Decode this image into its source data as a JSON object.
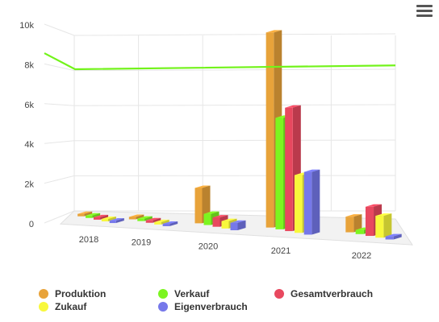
{
  "chart_data": {
    "type": "bar",
    "categories": [
      "2018",
      "2019",
      "2020",
      "2021",
      "2022"
    ],
    "series": [
      {
        "name": "Produktion",
        "values": [
          50,
          60,
          1900,
          9800,
          750
        ],
        "color": "#e8a33a"
      },
      {
        "name": "Verkauf",
        "values": [
          50,
          60,
          600,
          5600,
          200
        ],
        "color": "#7cf520"
      },
      {
        "name": "Gesamtverbrauch",
        "values": [
          50,
          60,
          500,
          6200,
          1400
        ],
        "color": "#e8485f"
      },
      {
        "name": "Zukauf",
        "values": [
          50,
          60,
          400,
          2900,
          1050
        ],
        "color": "#f8f83c"
      },
      {
        "name": "Eigenverbrauch",
        "values": [
          50,
          60,
          400,
          3150,
          150
        ],
        "color": "#7678ea"
      }
    ],
    "line": {
      "value_start": 8500,
      "value_end": 8200,
      "color": "#72f31a"
    },
    "y_ticks": [
      "0",
      "2k",
      "4k",
      "6k",
      "8k",
      "10k"
    ],
    "ylim": [
      0,
      10000
    ],
    "grid": true,
    "legend_position": "bottom",
    "title": "",
    "xlabel": "",
    "ylabel": ""
  },
  "menu_icon": "hamburger-menu-icon"
}
